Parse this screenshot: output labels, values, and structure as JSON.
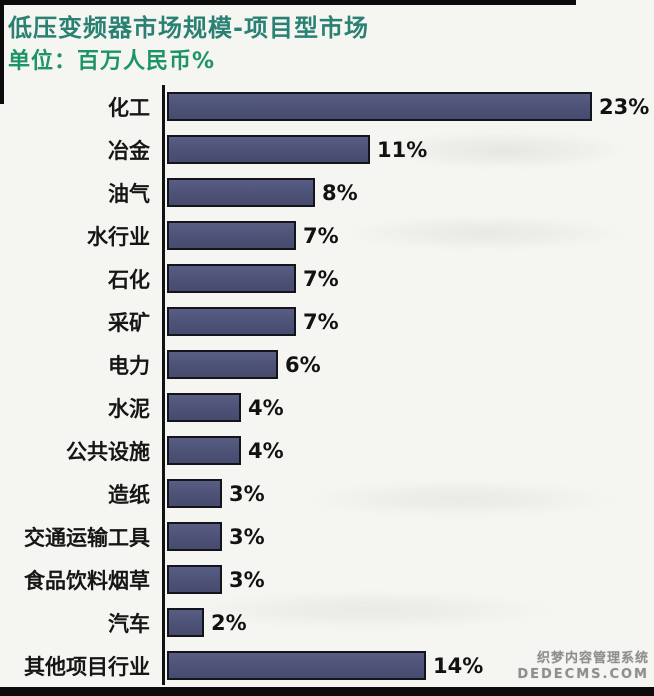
{
  "header": {
    "title": "低压变频器市场规模-项目型市场",
    "subtitle": "单位：百万人民币%"
  },
  "chart_data": {
    "type": "bar",
    "orientation": "horizontal",
    "title": "低压变频器市场规模-项目型市场",
    "unit_label": "单位：百万人民币%",
    "categories": [
      "化工",
      "冶金",
      "油气",
      "水行业",
      "石化",
      "采矿",
      "电力",
      "水泥",
      "公共设施",
      "造纸",
      "交通运输工具",
      "食品饮料烟草",
      "汽车",
      "其他项目行业"
    ],
    "values": [
      23,
      11,
      8,
      7,
      7,
      7,
      6,
      4,
      4,
      3,
      3,
      3,
      2,
      14
    ],
    "value_labels": [
      "23%",
      "11%",
      "8%",
      "7%",
      "7%",
      "7%",
      "6%",
      "4%",
      "4%",
      "3%",
      "3%",
      "3%",
      "2%",
      "14%"
    ],
    "xlim": [
      0,
      23
    ],
    "grid": false,
    "legend": false,
    "bar_color": "#4e5378",
    "bar_border_color": "#14141c",
    "axis_color": "#121212",
    "label_color": "#161616",
    "title_color": "#2a8173",
    "subtitle_color": "#1c9468"
  },
  "watermark": {
    "line1": "织梦内容管理系统",
    "line2": "DEDECMS.COM"
  }
}
